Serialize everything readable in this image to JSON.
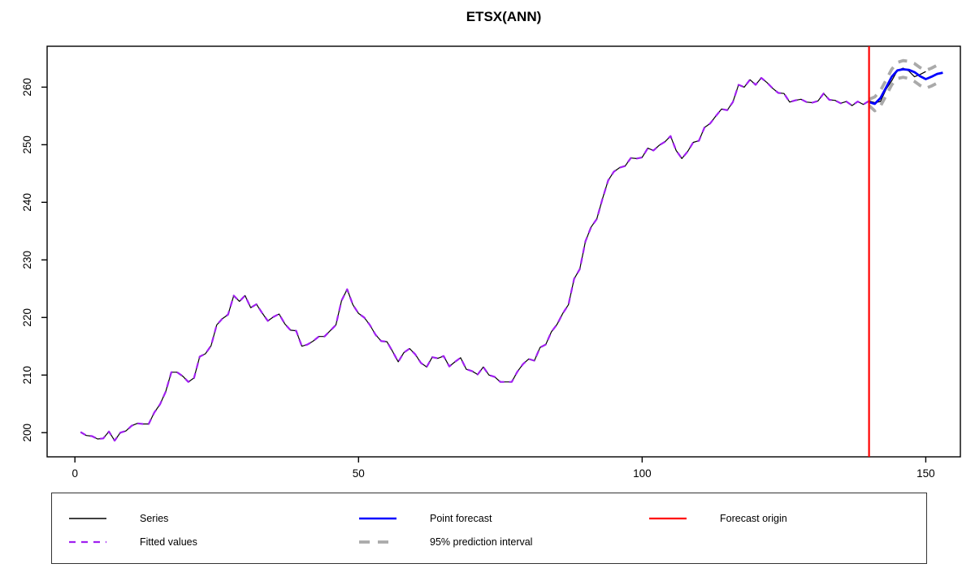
{
  "title": "ETSX(ANN)",
  "legend": {
    "items": [
      {
        "label": "Series",
        "color": "#000000",
        "dash": "",
        "width": 1.4,
        "col": 0,
        "row": 0
      },
      {
        "label": "Fitted values",
        "color": "#a020f0",
        "dash": "8 7",
        "width": 2.2,
        "col": 0,
        "row": 1
      },
      {
        "label": "Point forecast",
        "color": "#0000ff",
        "dash": "",
        "width": 2.6,
        "col": 1,
        "row": 0
      },
      {
        "label": "95% prediction interval",
        "color": "#aaaaaa",
        "dash": "13 10",
        "width": 3.8,
        "col": 1,
        "row": 1
      },
      {
        "label": "Forecast origin",
        "color": "#ff0000",
        "dash": "",
        "width": 2.2,
        "col": 2,
        "row": 0
      }
    ]
  },
  "chart_data": {
    "type": "line",
    "title": "ETSX(ANN)",
    "xlabel": "",
    "ylabel": "",
    "x_ticks": [
      0,
      50,
      100,
      150
    ],
    "y_ticks": [
      200,
      210,
      220,
      230,
      240,
      250,
      260
    ],
    "xlim": [
      -4.9,
      156.1
    ],
    "ylim": [
      195.8,
      267.1
    ],
    "grid": false,
    "forecast_origin_x": 140,
    "series": {
      "name": "Series",
      "x_start": 1,
      "values": [
        200.1,
        199.5,
        199.4,
        198.9,
        199.0,
        200.2,
        198.6,
        200.0,
        200.3,
        201.2,
        201.6,
        201.5,
        201.5,
        203.5,
        204.9,
        207.1,
        210.5,
        210.5,
        209.8,
        208.8,
        209.5,
        213.2,
        213.7,
        215.1,
        218.7,
        219.8,
        220.5,
        223.8,
        222.8,
        223.8,
        221.7,
        222.3,
        220.8,
        219.4,
        220.1,
        220.6,
        218.9,
        217.8,
        217.7,
        215.0,
        215.3,
        215.9,
        216.7,
        216.7,
        217.7,
        218.7,
        222.9,
        224.9,
        222.2,
        220.7,
        220.0,
        218.7,
        217.0,
        215.9,
        215.8,
        214.1,
        212.3,
        213.9,
        214.6,
        213.6,
        212.1,
        211.4,
        213.1,
        212.9,
        213.3,
        211.5,
        212.3,
        213.0,
        211.0,
        210.7,
        210.1,
        211.4,
        210.0,
        209.7,
        208.8,
        208.8,
        208.8,
        210.6,
        211.9,
        212.8,
        212.5,
        214.8,
        215.3,
        217.5,
        218.8,
        220.7,
        222.2,
        226.7,
        228.4,
        233.2,
        235.7,
        237.1,
        240.6,
        243.8,
        245.3,
        246.0,
        246.3,
        247.7,
        247.6,
        247.8,
        249.4,
        249.0,
        249.9,
        250.5,
        251.5,
        249.0,
        247.6,
        248.8,
        250.4,
        250.7,
        253.0,
        253.7,
        255.0,
        256.2,
        256.0,
        257.4,
        260.4,
        260.0,
        261.3,
        260.4,
        261.6,
        260.8,
        259.8,
        259.0,
        258.9,
        257.4,
        257.7,
        257.9,
        257.4,
        257.3,
        257.6,
        258.9,
        257.8,
        257.7,
        257.2,
        257.5,
        256.8,
        257.5,
        257.0,
        257.6,
        257.3,
        257.5,
        259.6,
        261.1,
        262.9,
        263.3,
        262.8,
        261.8,
        262.2,
        262.7
      ]
    },
    "fitted": {
      "name": "Fitted values",
      "note": "one-step-ahead fits, visually overlapping the series",
      "x_start": 1,
      "x_end": 140,
      "values_equal_series_through": 140
    },
    "point_forecast": {
      "name": "Point forecast",
      "x": [
        140,
        141,
        142,
        143,
        144,
        145,
        146,
        147,
        148,
        149,
        150,
        151,
        152,
        153
      ],
      "values": [
        257.4,
        257.1,
        258.1,
        259.9,
        261.8,
        262.9,
        263.1,
        263.0,
        262.6,
        261.9,
        261.4,
        261.8,
        262.3,
        262.5
      ]
    },
    "interval_upper": {
      "name": "95% prediction interval (upper)",
      "x": [
        140,
        141,
        142,
        143,
        144,
        145,
        146,
        147,
        148,
        149,
        150,
        151,
        152,
        153
      ],
      "values": [
        257.9,
        258.3,
        259.4,
        261.2,
        263.1,
        264.3,
        264.6,
        264.5,
        264.1,
        263.4,
        262.9,
        263.3,
        263.8,
        264.2
      ]
    },
    "interval_lower": {
      "name": "95% prediction interval (lower)",
      "x": [
        140,
        141,
        142,
        143,
        144,
        145,
        146,
        147,
        148,
        149,
        150,
        151,
        152,
        153
      ],
      "values": [
        256.8,
        255.9,
        256.7,
        258.5,
        260.4,
        261.5,
        261.7,
        261.5,
        261.0,
        260.3,
        259.8,
        260.2,
        260.7,
        260.9
      ]
    },
    "colors": {
      "series": "#000000",
      "fitted": "#a020f0",
      "forecast": "#0000ff",
      "interval": "#aaaaaa",
      "origin": "#ff0000",
      "axis": "#000000"
    }
  }
}
